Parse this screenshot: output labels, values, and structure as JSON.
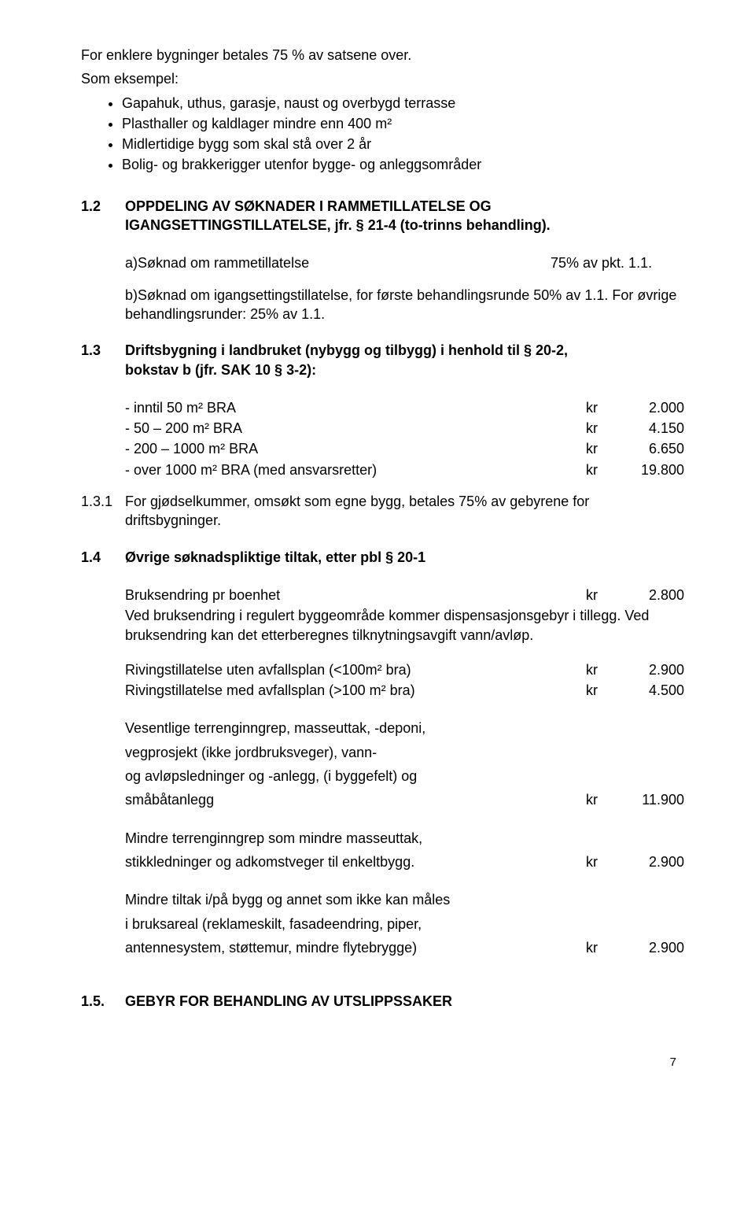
{
  "intro": {
    "line1": "For enklere bygninger betales 75 % av satsene over.",
    "line2": "Som eksempel:",
    "bullets": [
      "Gapahuk, uthus, garasje, naust og overbygd terrasse",
      "Plasthaller og kaldlager mindre enn 400 m²",
      "Midlertidige bygg som skal stå over 2 år",
      "Bolig- og brakkerigger utenfor bygge- og anleggsområder"
    ]
  },
  "s12": {
    "num": "1.2",
    "title_line1": "OPPDELING  AV SØKNADER I RAMMETILLATELSE OG",
    "title_line2": "IGANGSETTINGSTILLATELSE,  jfr. § 21-4 (to-trinns behandling).",
    "row_a": {
      "label": "a)Søknad om rammetillatelse",
      "right": "75% av pkt. 1.1."
    },
    "p_b": "b)Søknad om igangsettingstillatelse, for første behandlingsrunde 50% av 1.1. For øvrige behandlingsrunder: 25% av 1.1."
  },
  "s13": {
    "num": "1.3",
    "title_line1": "Driftsbygning i landbruket (nybygg og tilbygg) i henhold til § 20-2,",
    "title_line2": "bokstav b (jfr. SAK 10 § 3-2):",
    "rows": [
      {
        "label": "- inntil 50 m²  BRA",
        "kr": "kr",
        "amt": "2.000"
      },
      {
        "label": "- 50 – 200 m² BRA",
        "kr": "kr",
        "amt": "4.150"
      },
      {
        "label": "- 200 – 1000 m² BRA",
        "kr": "kr",
        "amt": "6.650"
      },
      {
        "label": "- over 1000 m² BRA (med ansvarsretter)",
        "kr": "kr",
        "amt": "19.800"
      }
    ],
    "sub": {
      "num": "1.3.1",
      "text": "For gjødselkummer, omsøkt som egne bygg, betales 75% av gebyrene for driftsbygninger."
    }
  },
  "s14": {
    "num": "1.4",
    "title": "Øvrige søknadspliktige tiltak, etter pbl § 20-1",
    "r1": {
      "label": "Bruksendring  pr boenhet",
      "kr": "kr",
      "amt": "2.800"
    },
    "p1": "Ved bruksendring i regulert byggeområde kommer dispensasjonsgebyr i tillegg. Ved bruksendring kan det etterberegnes tilknytningsavgift vann/avløp.",
    "r2": {
      "label": "Rivingstillatelse uten avfallsplan  (<100m² bra)",
      "kr": "kr",
      "amt": "2.900"
    },
    "r3": {
      "label": "Rivingstillatelse med avfallsplan  (>100 m² bra)",
      "kr": "kr",
      "amt": "4.500"
    },
    "p2a": "Vesentlige terrenginngrep, masseuttak, -deponi,",
    "p2b": "vegprosjekt (ikke jordbruksveger), vann-",
    "p2c": "og avløpsledninger  og -anlegg, (i byggefelt) og",
    "r4": {
      "label": "småbåtanlegg",
      "kr": "kr",
      "amt": "11.900"
    },
    "p3a": "Mindre terrenginngrep som mindre masseuttak,",
    "r5": {
      "label": "stikkledninger og adkomstveger  til enkeltbygg.",
      "kr": "kr",
      "amt": "2.900"
    },
    "p4a": "Mindre tiltak i/på bygg og annet som ikke kan måles",
    "p4b": "i bruksareal (reklameskilt, fasadeendring, piper,",
    "r6": {
      "label": "antennesystem, støttemur, mindre flytebrygge)",
      "kr": "kr",
      "amt": "2.900"
    }
  },
  "s15": {
    "num": "1.5.",
    "title": "GEBYR FOR BEHANDLING AV UTSLIPPSSAKER"
  },
  "page": "7"
}
